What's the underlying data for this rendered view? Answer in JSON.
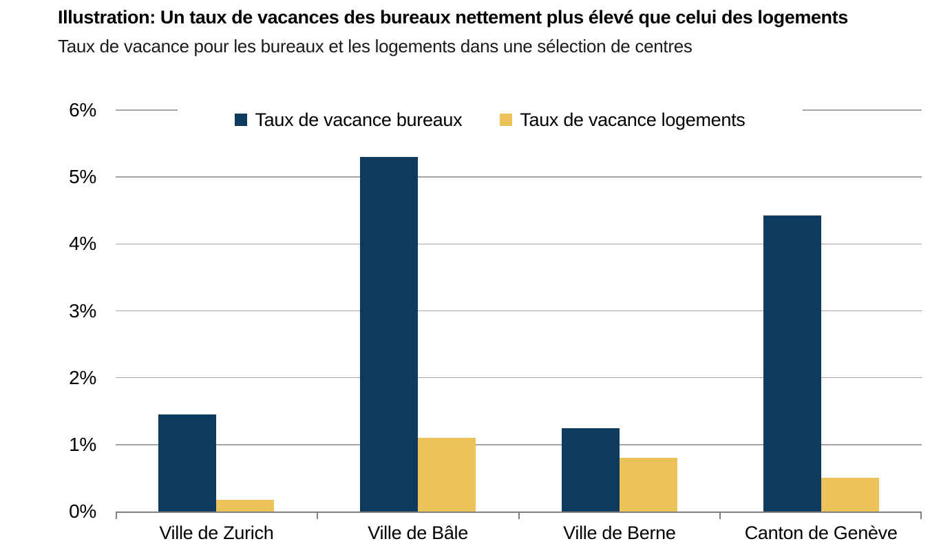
{
  "chart_data": {
    "type": "bar",
    "title": "Illustration: Un taux de vacances des bureaux nettement plus élevé que celui des logements",
    "subtitle": "Taux de vacance pour les bureaux et les logements dans une sélection de centres",
    "categories": [
      "Ville de Zurich",
      "Ville de Bâle",
      "Ville de Berne",
      "Canton de Genève"
    ],
    "series": [
      {
        "name": "Taux de vacance bureaux",
        "color": "#0e3a5e",
        "values": [
          1.45,
          5.3,
          1.25,
          4.43
        ]
      },
      {
        "name": "Taux de vacance logements",
        "color": "#ecc35b",
        "values": [
          0.17,
          1.1,
          0.8,
          0.5
        ]
      }
    ],
    "xlabel": "",
    "ylabel": "",
    "ylim": [
      0,
      6
    ],
    "ytick_labels": [
      "0%",
      "1%",
      "2%",
      "3%",
      "4%",
      "5%",
      "6%"
    ],
    "grid": true,
    "legend_position": "top-center-inside",
    "colors": {
      "gridline": "#a3a3a3",
      "axis": "#7f7f7f",
      "text": "#000000",
      "background": "#ffffff"
    }
  }
}
